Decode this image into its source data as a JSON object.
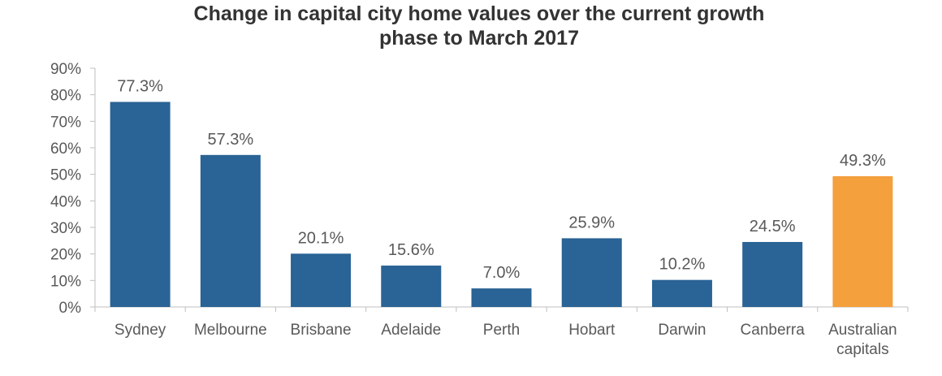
{
  "chart_data": {
    "type": "bar",
    "title_lines": [
      "Change in capital city home values over the current growth",
      "phase to March 2017"
    ],
    "categories": [
      [
        "Sydney"
      ],
      [
        "Melbourne"
      ],
      [
        "Brisbane"
      ],
      [
        "Adelaide"
      ],
      [
        "Perth"
      ],
      [
        "Hobart"
      ],
      [
        "Darwin"
      ],
      [
        "Canberra"
      ],
      [
        "Australian",
        "capitals"
      ]
    ],
    "values": [
      77.3,
      57.3,
      20.1,
      15.6,
      7.0,
      25.9,
      10.2,
      24.5,
      49.3
    ],
    "data_labels": [
      "77.3%",
      "57.3%",
      "20.1%",
      "15.6%",
      "7.0%",
      "25.9%",
      "10.2%",
      "24.5%",
      "49.3%"
    ],
    "y_ticks": [
      "0%",
      "10%",
      "20%",
      "30%",
      "40%",
      "50%",
      "60%",
      "70%",
      "80%",
      "90%"
    ],
    "ylim": [
      0,
      90
    ],
    "xlabel": "",
    "ylabel": "",
    "grid": false,
    "legend": "none",
    "colors": {
      "bar": "#2A6395",
      "highlight": "#F4A03D",
      "axis": "#BFBFBF",
      "text": "#595959",
      "title": "#333333"
    },
    "highlight_index": 8
  }
}
